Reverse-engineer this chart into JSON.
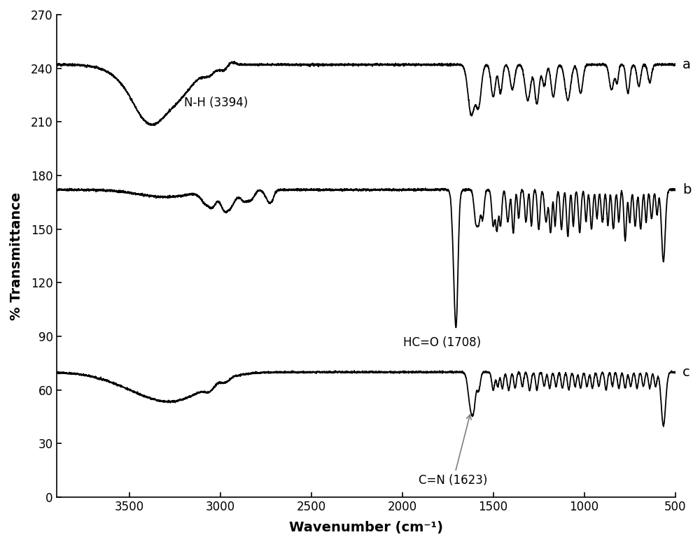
{
  "title": "",
  "xlabel": "Wavenumber (cm⁻¹)",
  "ylabel": "% Transmittance",
  "xlim": [
    500,
    3900
  ],
  "ylim": [
    0,
    270
  ],
  "xticks": [
    500,
    1000,
    1500,
    2000,
    2500,
    3000,
    3500
  ],
  "yticks": [
    0,
    30,
    60,
    90,
    120,
    150,
    180,
    210,
    240,
    270
  ],
  "curve_color": "#000000",
  "background_color": "#ffffff",
  "label_a": "a",
  "label_b": "b",
  "label_c": "c",
  "annotation_nh": "N-H (3394)",
  "annotation_hco": "HC=O (1708)",
  "annotation_cn": "C=N (1623)",
  "baseline_a": 242,
  "baseline_b": 172,
  "baseline_c": 70
}
